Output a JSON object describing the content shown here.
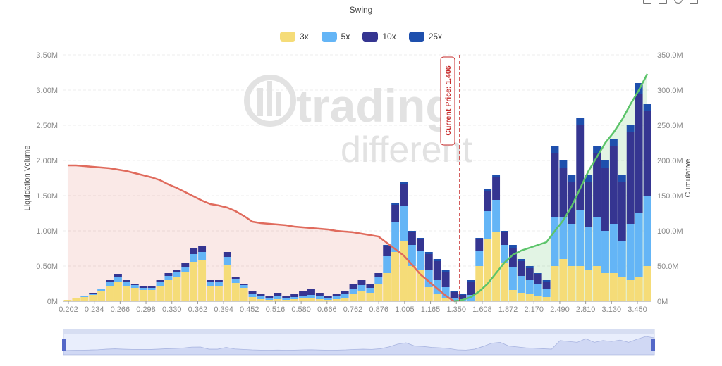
{
  "chart_data": {
    "type": "bar",
    "stacked": true,
    "title": "Swing",
    "ylabel": "Liquidation Volume",
    "y2label": "Cumulative",
    "ylim": [
      0,
      3.5
    ],
    "y2lim": [
      0,
      350
    ],
    "y_ticks": [
      "0M",
      "0.50M",
      "1.00M",
      "1.50M",
      "2.00M",
      "2.50M",
      "3.00M",
      "3.50M"
    ],
    "y2_ticks": [
      "0M",
      "50.0M",
      "100.0M",
      "150.0M",
      "200.0M",
      "250.0M",
      "300.0M",
      "350.0M"
    ],
    "x_ticks": [
      "0.202",
      "0.234",
      "0.266",
      "0.298",
      "0.330",
      "0.362",
      "0.394",
      "0.452",
      "0.516",
      "0.580",
      "0.666",
      "0.762",
      "0.876",
      "1.005",
      "1.165",
      "1.350",
      "1.608",
      "1.872",
      "2.170",
      "2.490",
      "2.810",
      "3.130",
      "3.450"
    ],
    "grid": true,
    "legend_position": "top",
    "series": [
      {
        "name": "3x",
        "color": "#f5dc78",
        "values": [
          0.02,
          0.04,
          0.06,
          0.09,
          0.14,
          0.22,
          0.28,
          0.22,
          0.19,
          0.16,
          0.16,
          0.22,
          0.3,
          0.34,
          0.41,
          0.56,
          0.58,
          0.22,
          0.22,
          0.52,
          0.26,
          0.19,
          0.06,
          0.03,
          0.02,
          0.03,
          0.02,
          0.03,
          0.04,
          0.04,
          0.03,
          0.02,
          0.03,
          0.05,
          0.1,
          0.15,
          0.12,
          0.25,
          0.4,
          0.7,
          0.85,
          0.5,
          0.45,
          0.2,
          0.1,
          0.05,
          0,
          0,
          0,
          0.5,
          0.88,
          0.99,
          0.55,
          0.16,
          0.12,
          0.1,
          0.08,
          0.06,
          0.5,
          0.6,
          0.5,
          0.5,
          0.45,
          0.5,
          0.4,
          0.4,
          0.35,
          0.3,
          0.35,
          0.5
        ]
      },
      {
        "name": "5x",
        "color": "#64b5f6",
        "values": [
          0,
          0.01,
          0.01,
          0.02,
          0.03,
          0.05,
          0.06,
          0.05,
          0.04,
          0.03,
          0.03,
          0.05,
          0.06,
          0.07,
          0.08,
          0.11,
          0.12,
          0.05,
          0.05,
          0.11,
          0.05,
          0.04,
          0.05,
          0.04,
          0.03,
          0.04,
          0.03,
          0.03,
          0.04,
          0.05,
          0.04,
          0.03,
          0.04,
          0.05,
          0.08,
          0.08,
          0.07,
          0.1,
          0.24,
          0.42,
          0.51,
          0.3,
          0.27,
          0.25,
          0.2,
          0.15,
          0.04,
          0.03,
          0.09,
          0.22,
          0.4,
          0.45,
          0.25,
          0.32,
          0.24,
          0.2,
          0.16,
          0.12,
          0.7,
          0.6,
          0.6,
          0.8,
          0.6,
          0.7,
          0.6,
          0.7,
          0.5,
          0.8,
          0.9,
          1.0
        ]
      },
      {
        "name": "10x",
        "color": "#353591",
        "values": [
          0,
          0,
          0.01,
          0.01,
          0.01,
          0.03,
          0.04,
          0.03,
          0.02,
          0.03,
          0.03,
          0.03,
          0.04,
          0.04,
          0.06,
          0.08,
          0.08,
          0.03,
          0.03,
          0.07,
          0.04,
          0.02,
          0.04,
          0.03,
          0.03,
          0.05,
          0.03,
          0.04,
          0.07,
          0.09,
          0.05,
          0.03,
          0.03,
          0.05,
          0.07,
          0.07,
          0.06,
          0.05,
          0.14,
          0.25,
          0.31,
          0.18,
          0.16,
          0.22,
          0.27,
          0.22,
          0.09,
          0.06,
          0.18,
          0.16,
          0.29,
          0.32,
          0.18,
          0.28,
          0.21,
          0.17,
          0.14,
          0.1,
          0.9,
          0.7,
          0.6,
          1.2,
          0.65,
          0.9,
          0.9,
          1.1,
          0.85,
          1.3,
          1.7,
          1.2
        ]
      },
      {
        "name": "25x",
        "color": "#1e4fad",
        "values": [
          0,
          0,
          0,
          0,
          0,
          0,
          0,
          0,
          0,
          0,
          0,
          0,
          0,
          0,
          0,
          0,
          0,
          0,
          0,
          0,
          0,
          0,
          0,
          0,
          0,
          0,
          0,
          0,
          0,
          0,
          0,
          0,
          0,
          0,
          0,
          0,
          0,
          0,
          0.02,
          0.03,
          0.03,
          0.02,
          0.02,
          0.03,
          0.03,
          0.03,
          0.02,
          0.01,
          0.03,
          0.02,
          0.03,
          0.04,
          0.02,
          0.04,
          0.03,
          0.03,
          0.02,
          0.02,
          0.1,
          0.1,
          0.1,
          0.1,
          0.1,
          0.1,
          0.1,
          0.1,
          0.1,
          0.1,
          0.15,
          0.1
        ]
      }
    ],
    "cumulative_short": {
      "color": "#e06b5d",
      "values": [
        193,
        193,
        192,
        191,
        190,
        189,
        187,
        185,
        182,
        179,
        176,
        172,
        166,
        161,
        155,
        149,
        143,
        138,
        136,
        133,
        128,
        121,
        113,
        111,
        110,
        109,
        108,
        106,
        105,
        104,
        103,
        102,
        100,
        99,
        98,
        96,
        94,
        92,
        83,
        74,
        65,
        52,
        38,
        28,
        18,
        8,
        0,
        null,
        null,
        null,
        null,
        null,
        null,
        null,
        null,
        null,
        null,
        null,
        null,
        null,
        null,
        null,
        null,
        null,
        null,
        null,
        null,
        null,
        null,
        null
      ]
    },
    "cumulative_long": {
      "color": "#5cc46a",
      "values": [
        null,
        null,
        null,
        null,
        null,
        null,
        null,
        null,
        null,
        null,
        null,
        null,
        null,
        null,
        null,
        null,
        null,
        null,
        null,
        null,
        null,
        null,
        null,
        null,
        null,
        null,
        null,
        null,
        null,
        null,
        null,
        null,
        null,
        null,
        null,
        null,
        null,
        null,
        null,
        null,
        null,
        null,
        null,
        null,
        null,
        null,
        0,
        2,
        6,
        14,
        25,
        40,
        55,
        66,
        72,
        76,
        80,
        84,
        100,
        115,
        135,
        160,
        185,
        205,
        225,
        240,
        258,
        280,
        300,
        323
      ]
    },
    "current_price": {
      "label": "Current Price: 1.406",
      "value": 1.406,
      "color": "#c62828"
    }
  },
  "watermark": {
    "line1": "trading",
    "line2": "different"
  },
  "toolbar": {
    "icons": [
      "zoom-icon",
      "zoom-reset-icon",
      "restore-icon",
      "download-icon"
    ]
  }
}
